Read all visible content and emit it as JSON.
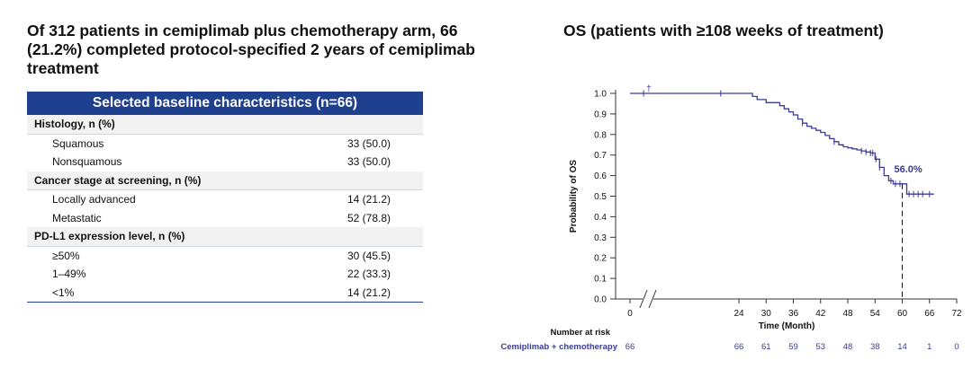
{
  "left_title": "Of 312 patients in cemiplimab plus chemotherapy arm, 66 (21.2%) completed protocol-specified 2 years of cemiplimab treatment",
  "table": {
    "header": "Selected baseline characteristics (n=66)",
    "rows": [
      {
        "label": "Histology, n (%)",
        "value": "",
        "group": true
      },
      {
        "label": "Squamous",
        "value": "33 (50.0)",
        "group": false
      },
      {
        "label": "Nonsquamous",
        "value": "33 (50.0)",
        "group": false
      },
      {
        "label": "Cancer stage at screening, n (%)",
        "value": "",
        "group": true
      },
      {
        "label": "Locally advanced",
        "value": "14 (21.2)",
        "group": false
      },
      {
        "label": "Metastatic",
        "value": "52 (78.8)",
        "group": false
      },
      {
        "label": "PD-L1 expression level, n (%)",
        "value": "",
        "group": true
      },
      {
        "label": "≥50%",
        "value": "30 (45.5)",
        "group": false
      },
      {
        "label": "1–49%",
        "value": "22 (33.3)",
        "group": false
      },
      {
        "label": "<1%",
        "value": "14 (21.2)",
        "group": false
      }
    ]
  },
  "chart_data": {
    "type": "line",
    "title": "OS (patients with ≥108 weeks of treatment)",
    "xlabel": "Time (Month)",
    "ylabel": "Probability of OS",
    "x_ticks": [
      "0",
      "24",
      "30",
      "36",
      "42",
      "48",
      "54",
      "60",
      "66",
      "72"
    ],
    "x_tick_values": [
      0,
      24,
      30,
      36,
      42,
      48,
      54,
      60,
      66,
      72
    ],
    "y_ticks": [
      "0.0",
      "0.1",
      "0.2",
      "0.3",
      "0.4",
      "0.5",
      "0.6",
      "0.7",
      "0.8",
      "0.9",
      "1.0"
    ],
    "y_tick_values": [
      0.0,
      0.1,
      0.2,
      0.3,
      0.4,
      0.5,
      0.6,
      0.7,
      0.8,
      0.9,
      1.0
    ],
    "xlim": [
      0,
      72
    ],
    "ylim": [
      0,
      1.0
    ],
    "axis_break": true,
    "series": [
      {
        "name": "Cemiplimab + chemotherapy",
        "color": "#3b3b9a",
        "x": [
          0,
          27,
          28,
          30,
          33,
          34,
          35,
          36,
          37,
          38,
          39,
          40,
          41,
          42,
          43,
          44,
          45,
          46,
          47,
          48,
          49,
          50,
          51,
          52,
          53,
          54,
          55,
          56,
          57,
          58,
          59,
          60,
          61,
          63,
          65,
          67
        ],
        "y": [
          1.0,
          0.985,
          0.97,
          0.955,
          0.94,
          0.925,
          0.91,
          0.895,
          0.875,
          0.855,
          0.84,
          0.83,
          0.82,
          0.81,
          0.795,
          0.78,
          0.765,
          0.75,
          0.74,
          0.735,
          0.73,
          0.725,
          0.72,
          0.715,
          0.71,
          0.68,
          0.64,
          0.6,
          0.575,
          0.56,
          0.56,
          0.56,
          0.51,
          0.51,
          0.51,
          0.51
        ]
      }
    ],
    "censor_x": [
      3,
      20,
      38,
      45,
      51,
      52,
      53,
      53.5,
      54.2,
      55,
      57.5,
      58.5,
      59.5,
      61.5,
      62.5,
      63.5,
      64.5,
      66
    ],
    "dagger_x": 4,
    "annotation": {
      "text": "56.0%",
      "x": 60,
      "y": 0.56
    },
    "number_at_risk": {
      "label": "Number at risk",
      "row_label": "Cemiplimab + chemotherapy",
      "values": [
        "66",
        "66",
        "61",
        "59",
        "53",
        "48",
        "38",
        "14",
        "1",
        "0"
      ]
    }
  }
}
